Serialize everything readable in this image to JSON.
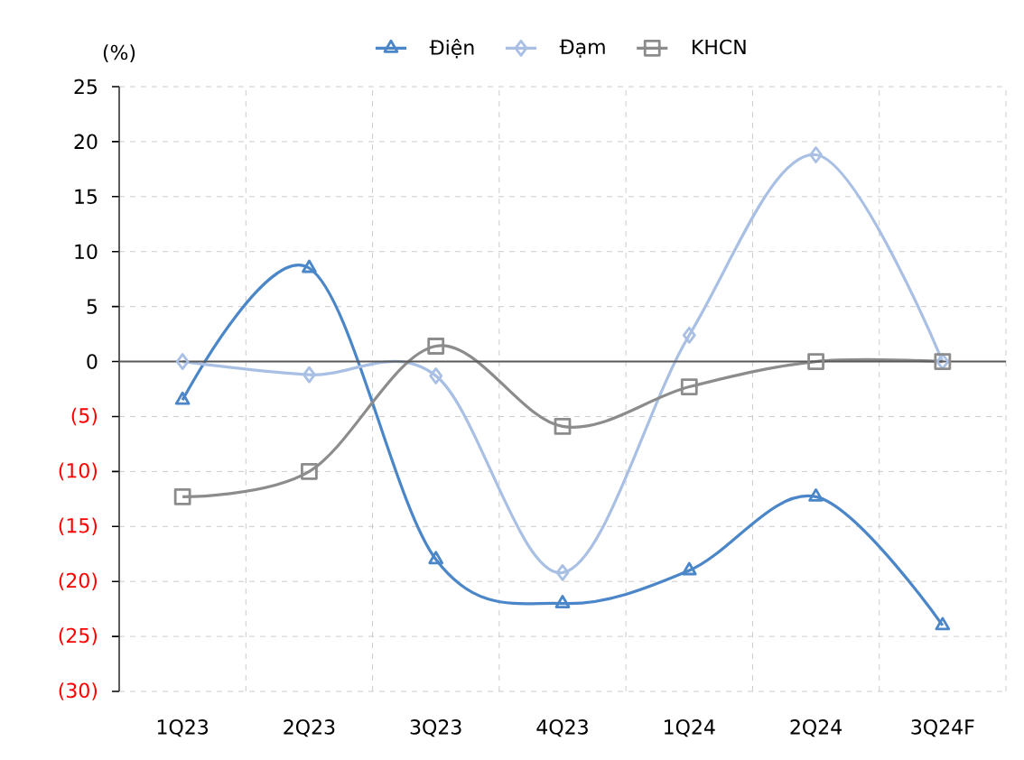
{
  "chart_data": {
    "type": "line",
    "ylabel": "(%)",
    "categories": [
      "1Q23",
      "2Q23",
      "3Q23",
      "4Q23",
      "1Q24",
      "2Q24",
      "3Q24F"
    ],
    "series": [
      {
        "name": "Điện",
        "color": "#4a86c8",
        "marker": "triangle",
        "values": [
          -3.5,
          8.5,
          -18,
          -22,
          -19,
          -12.3,
          -24
        ]
      },
      {
        "name": "Đạm",
        "color": "#a9c0e4",
        "marker": "diamond",
        "values": [
          0,
          -1.2,
          -1.3,
          -19.2,
          2.4,
          18.8,
          0
        ]
      },
      {
        "name": "KHCN",
        "color": "#8c8c8c",
        "marker": "square",
        "values": [
          -12.3,
          -10,
          1.4,
          -5.9,
          -2.3,
          0,
          0
        ]
      }
    ],
    "ylim": [
      -30,
      25
    ],
    "yticks": [
      25,
      20,
      15,
      10,
      5,
      0,
      {
        "value": -5,
        "label": "(5)"
      },
      {
        "value": -10,
        "label": "(10)"
      },
      {
        "value": -15,
        "label": "(15)"
      },
      {
        "value": -20,
        "label": "(20)"
      },
      {
        "value": -25,
        "label": "(25)"
      },
      {
        "value": -30,
        "label": "(30)"
      }
    ],
    "ref_lines": [
      {
        "axis": "y",
        "value": 0,
        "color": "#595959"
      }
    ],
    "grid": true,
    "legend": "top"
  }
}
